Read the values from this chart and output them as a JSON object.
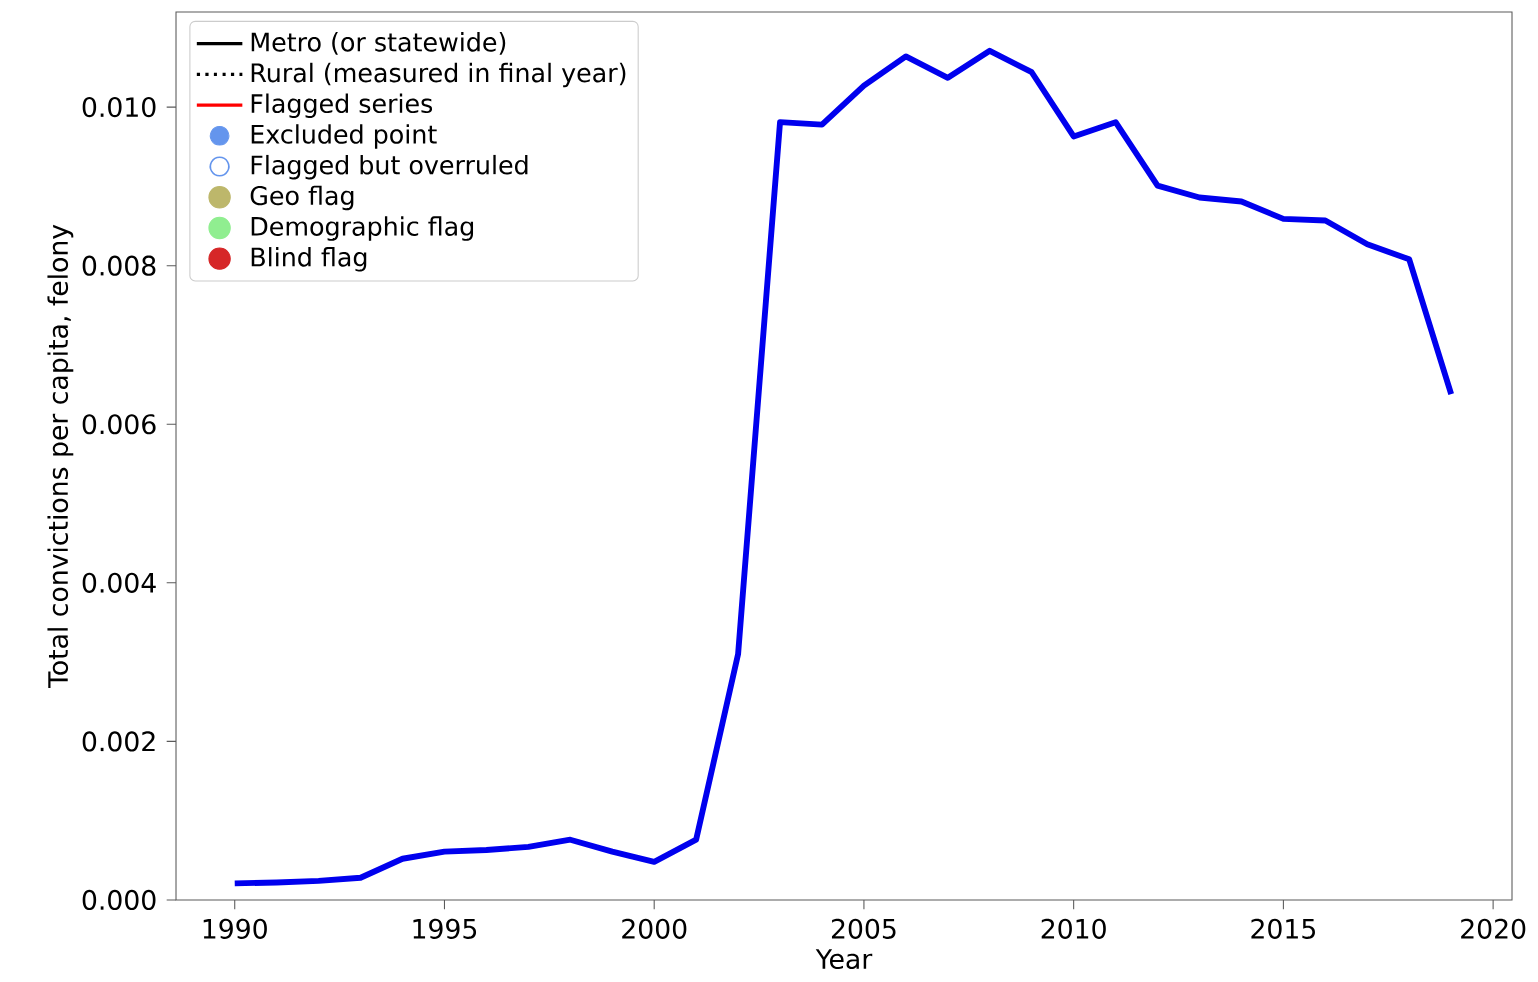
{
  "chart_data": {
    "type": "line",
    "xlabel": "Year",
    "ylabel": "Total convictions per capita, felony",
    "x": [
      1990,
      1991,
      1992,
      1993,
      1994,
      1995,
      1996,
      1997,
      1998,
      1999,
      2000,
      2001,
      2002,
      2003,
      2004,
      2005,
      2006,
      2007,
      2008,
      2009,
      2010,
      2011,
      2012,
      2013,
      2014,
      2015,
      2016,
      2017,
      2018,
      2019
    ],
    "series": [
      {
        "color": "#0000ee",
        "values": [
          0.00021,
          0.00022,
          0.00024,
          0.00028,
          0.00052,
          0.00061,
          0.00063,
          0.00067,
          0.00076,
          0.00061,
          0.00048,
          0.00076,
          0.0031,
          0.00981,
          0.00978,
          0.01027,
          0.01064,
          0.01037,
          0.01071,
          0.01044,
          0.00963,
          0.00981,
          0.00901,
          0.00886,
          0.00881,
          0.00859,
          0.00857,
          0.00827,
          0.00808,
          0.00638
        ]
      },
      {
        "name": "Metro (or statewide)",
        "type": "line",
        "line_style": "solid",
        "color": "#000000",
        "values": [
          null,
          null,
          null,
          null,
          null,
          null,
          null,
          null,
          null,
          null,
          null,
          null,
          null,
          null,
          null,
          null,
          null,
          null,
          null,
          null,
          null,
          null,
          null,
          null,
          null,
          null,
          null,
          null,
          null,
          null
        ]
      },
      {
        "name": "Rural (measured in final year)",
        "type": "line",
        "line_style": "dotted",
        "color": "#000000",
        "values": [
          null,
          null,
          null,
          null,
          null,
          null,
          null,
          null,
          null,
          null,
          null,
          null,
          null,
          null,
          null,
          null,
          null,
          null,
          null,
          null,
          null,
          null,
          null,
          null,
          null,
          null,
          null,
          null,
          null,
          null
        ]
      },
      {
        "name": "Flagged series",
        "type": "line",
        "line_style": "solid",
        "color": "#ff0000",
        "values": [
          null,
          null,
          null,
          null,
          null,
          null,
          null,
          null,
          null,
          null,
          null,
          null,
          null,
          null,
          null,
          null,
          null,
          null,
          null,
          null,
          null,
          null,
          null,
          null,
          null,
          null,
          null,
          null,
          null,
          null
        ]
      },
      {
        "name": "Excluded point",
        "type": "scatter",
        "marker": "hexagon",
        "color": "#6495ed",
        "values": [
          null,
          null,
          null,
          null,
          null,
          null,
          null,
          null,
          null,
          null,
          null,
          null,
          null,
          null,
          null,
          null,
          null,
          null,
          null,
          null,
          null,
          null,
          null,
          null,
          null,
          null,
          null,
          null,
          null,
          null
        ]
      },
      {
        "name": "Flagged but overruled",
        "type": "scatter",
        "marker": "hexagon-open",
        "color": "#6495ed",
        "values": [
          null,
          null,
          null,
          null,
          null,
          null,
          null,
          null,
          null,
          null,
          null,
          null,
          null,
          null,
          null,
          null,
          null,
          null,
          null,
          null,
          null,
          null,
          null,
          null,
          null,
          null,
          null,
          null,
          null,
          null
        ]
      },
      {
        "name": "Geo flag",
        "type": "scatter",
        "marker": "circle",
        "color": "#bdb76b",
        "values": [
          null,
          null,
          null,
          null,
          null,
          null,
          null,
          null,
          null,
          null,
          null,
          null,
          null,
          null,
          null,
          null,
          null,
          null,
          null,
          null,
          null,
          null,
          null,
          null,
          null,
          null,
          null,
          null,
          null,
          null
        ]
      },
      {
        "name": "Demographic flag",
        "type": "scatter",
        "marker": "circle",
        "color": "#90ee90",
        "values": [
          null,
          null,
          null,
          null,
          null,
          null,
          null,
          null,
          null,
          null,
          null,
          null,
          null,
          null,
          null,
          null,
          null,
          null,
          null,
          null,
          null,
          null,
          null,
          null,
          null,
          null,
          null,
          null,
          null,
          null
        ]
      },
      {
        "name": "Blind flag",
        "type": "scatter",
        "marker": "circle",
        "color": "#d62728",
        "values": [
          null,
          null,
          null,
          null,
          null,
          null,
          null,
          null,
          null,
          null,
          null,
          null,
          null,
          null,
          null,
          null,
          null,
          null,
          null,
          null,
          null,
          null,
          null,
          null,
          null,
          null,
          null,
          null,
          null,
          null
        ]
      }
    ],
    "xlim": [
      1988.6,
      2020.45
    ],
    "ylim": [
      0,
      0.0112
    ],
    "xticks": [
      1990,
      1995,
      2000,
      2005,
      2010,
      2015,
      2020
    ],
    "yticks": [
      {
        "value": 0,
        "label": "0.000"
      },
      {
        "value": 0.002,
        "label": "0.002"
      },
      {
        "value": 0.004,
        "label": "0.004"
      },
      {
        "value": 0.006,
        "label": "0.006"
      },
      {
        "value": 0.008,
        "label": "0.008"
      },
      {
        "value": 0.01,
        "label": "0.010"
      }
    ],
    "grid": false,
    "legend": "top left"
  }
}
